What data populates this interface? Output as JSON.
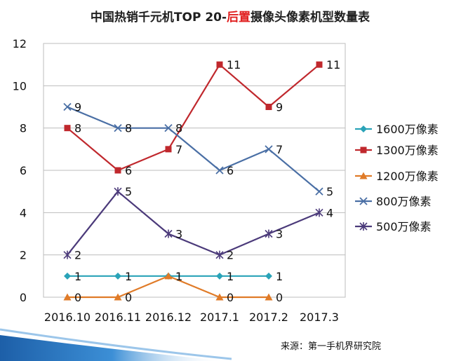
{
  "chart_data": {
    "type": "line",
    "title_prefix": "中国热销千元机TOP 20-",
    "title_highlight": "后置",
    "title_suffix": "摄像头像素机型数量表",
    "categories": [
      "2016.10",
      "2016.11",
      "2016.12",
      "2017.1",
      "2017.2",
      "2017.3"
    ],
    "ylim": [
      0,
      12
    ],
    "yticks": [
      0,
      2,
      4,
      6,
      8,
      10,
      12
    ],
    "grid": true,
    "legend_position": "right",
    "series": [
      {
        "name": "1600万像素",
        "values": [
          1,
          1,
          1,
          1,
          1,
          null
        ],
        "color": "#2aa3b8",
        "marker": "diamond"
      },
      {
        "name": "1300万像素",
        "values": [
          8,
          6,
          7,
          11,
          9,
          11
        ],
        "color": "#c0282d",
        "marker": "square"
      },
      {
        "name": "1200万像素",
        "values": [
          0,
          0,
          1,
          0,
          0,
          null
        ],
        "color": "#e07b28",
        "marker": "triangle"
      },
      {
        "name": "800万像素",
        "values": [
          9,
          8,
          8,
          6,
          7,
          5
        ],
        "color": "#4a6fa5",
        "marker": "x"
      },
      {
        "name": "500万像素",
        "values": [
          2,
          5,
          3,
          2,
          3,
          4
        ],
        "color": "#4b3a7a",
        "marker": "star"
      }
    ],
    "source": "来源：第一手机界研究院"
  }
}
